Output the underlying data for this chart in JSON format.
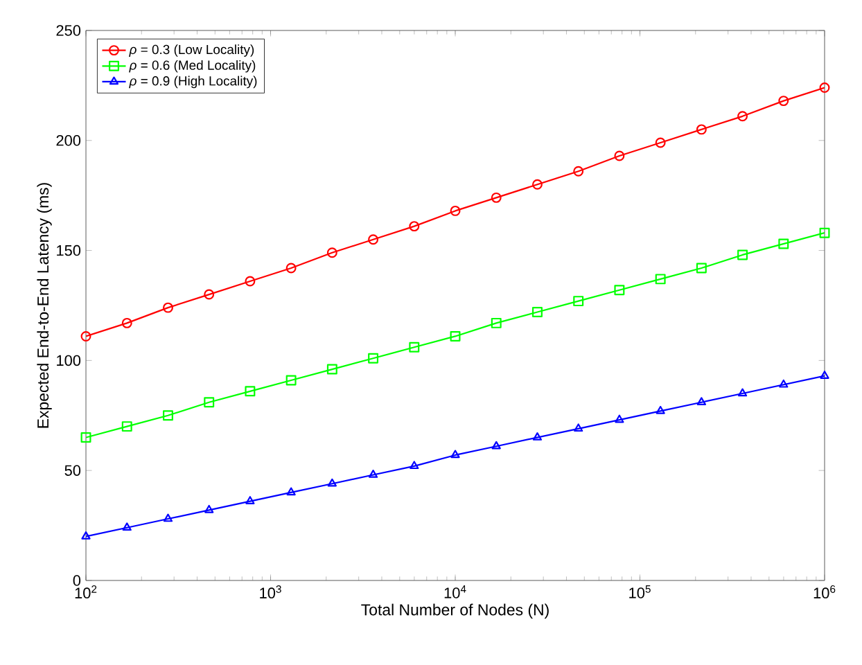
{
  "chart_data": {
    "type": "line",
    "xlabel": "Total Number of Nodes (N)",
    "ylabel": "Expected End-to-End Latency (ms)",
    "log": "x",
    "x": [
      100,
      166.8,
      278.3,
      464.2,
      774.3,
      1291.5,
      2154.4,
      3593.8,
      5994.8,
      10000,
      16681,
      27826,
      46416,
      77426,
      129155,
      215443,
      359381,
      599484,
      1000000
    ],
    "xlim": [
      100,
      1000000
    ],
    "ylim": [
      0,
      250
    ],
    "xticks": [
      {
        "value": 100,
        "label": "10$^{2}$"
      },
      {
        "value": 1000,
        "label": "10$^{3}$"
      },
      {
        "value": 10000,
        "label": "10$^{4}$"
      },
      {
        "value": 100000,
        "label": "10$^{5}$"
      },
      {
        "value": 1000000,
        "label": "10$^{6}$"
      }
    ],
    "yticks": [
      0,
      50,
      100,
      150,
      200,
      250
    ],
    "grid": false,
    "legend": "top left",
    "line_style": "solid",
    "series": [
      {
        "name": "*ρ* = 0.3 (Low Locality)",
        "color": "#ff0000",
        "marker": "circle",
        "values": [
          111,
          117,
          124,
          130,
          136,
          142,
          149,
          155,
          161,
          168,
          174,
          180,
          186,
          193,
          199,
          205,
          211,
          218,
          224
        ]
      },
      {
        "name": "*ρ* = 0.6 (Med Locality)",
        "color": "#00ff00",
        "marker": "square",
        "values": [
          65,
          70,
          75,
          81,
          86,
          91,
          96,
          101,
          106,
          111,
          117,
          122,
          127,
          132,
          137,
          142,
          148,
          153,
          158
        ]
      },
      {
        "name": "*ρ* = 0.9 (High Locality)",
        "color": "#0000ff",
        "marker": "triangle",
        "values": [
          20,
          24,
          28,
          32,
          36,
          40,
          44,
          48,
          52,
          57,
          61,
          65,
          69,
          73,
          77,
          81,
          85,
          89,
          93
        ]
      }
    ]
  }
}
